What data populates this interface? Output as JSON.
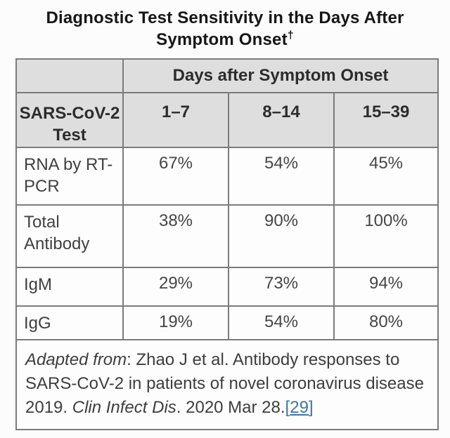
{
  "title": {
    "line1": "Diagnostic Test Sensitivity in the Days After",
    "line2": "Symptom Onset",
    "dagger": "†"
  },
  "table": {
    "col_group_header": "Days after Symptom Onset",
    "row_header": "SARS-CoV-2 Test",
    "col_headers": [
      "1–7",
      "8–14",
      "15–39"
    ],
    "rows": [
      {
        "label": "RNA by RT-PCR",
        "values": [
          "67%",
          "54%",
          "45%"
        ]
      },
      {
        "label": "Total Antibody",
        "values": [
          "38%",
          "90%",
          "100%"
        ]
      },
      {
        "label": "IgM",
        "values": [
          "29%",
          "73%",
          "94%"
        ]
      },
      {
        "label": "IgG",
        "values": [
          "19%",
          "54%",
          "80%"
        ]
      }
    ]
  },
  "footnote": {
    "prefix_italic": "Adapted from",
    "text_1": ": Zhao J et al. Antibody responses to SARS-CoV-2 in patients of novel coronavirus disease 2019. ",
    "journal_italic": "Clin Infect Dis",
    "text_2": ". 2020 Mar 28.",
    "ref_open": "[",
    "ref_label": "29",
    "ref_close": "]"
  },
  "colors": {
    "header_background": "#dedede",
    "border": "#7b7b7b",
    "link_blue": "#3a76a9",
    "body_text": "#404040",
    "title_text": "#161616"
  },
  "chart_data": {
    "type": "table",
    "title": "Diagnostic Test Sensitivity in the Days After Symptom Onset†",
    "column_group_label": "Days after Symptom Onset",
    "columns": [
      "SARS-CoV-2 Test",
      "1–7",
      "8–14",
      "15–39"
    ],
    "rows": [
      [
        "RNA by RT-PCR",
        "67%",
        "54%",
        "45%"
      ],
      [
        "Total Antibody",
        "38%",
        "90%",
        "100%"
      ],
      [
        "IgM",
        "29%",
        "73%",
        "94%"
      ],
      [
        "IgG",
        "19%",
        "54%",
        "80%"
      ]
    ],
    "values_percent": {
      "RNA by RT-PCR": [
        67,
        54,
        45
      ],
      "Total Antibody": [
        38,
        90,
        100
      ],
      "IgM": [
        29,
        73,
        94
      ],
      "IgG": [
        19,
        54,
        80
      ]
    },
    "footnote": "Adapted from: Zhao J et al. Antibody responses to SARS-CoV-2 in patients of novel coronavirus disease 2019. Clin Infect Dis. 2020 Mar 28.[29]"
  }
}
